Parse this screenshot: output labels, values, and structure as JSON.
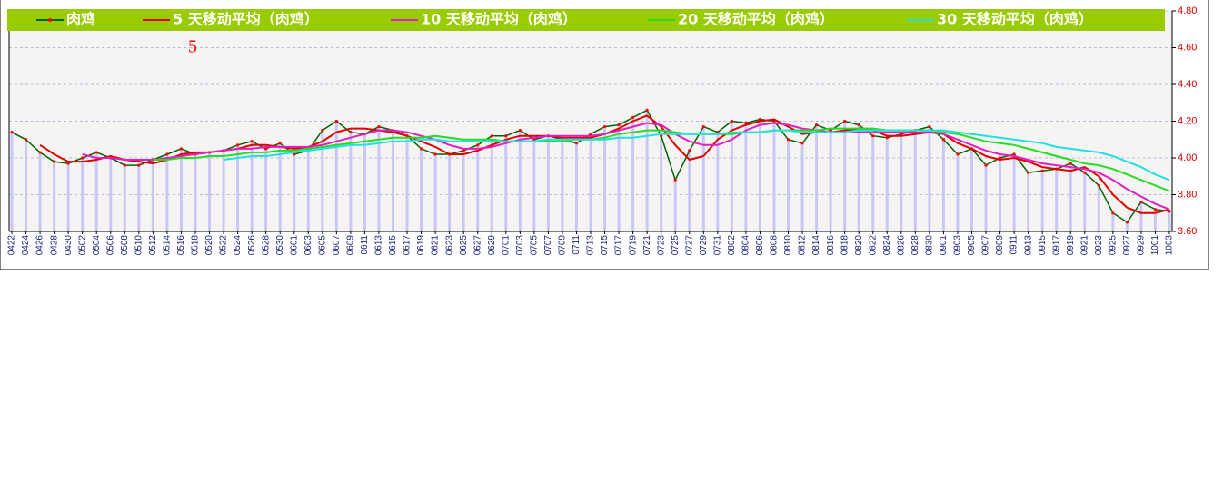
{
  "chart_data": {
    "type": "line",
    "title": "5",
    "categories": [
      "0422",
      "0424",
      "0426",
      "0428",
      "0430",
      "0502",
      "0504",
      "0506",
      "0508",
      "0510",
      "0512",
      "0514",
      "0516",
      "0518",
      "0520",
      "0522",
      "0524",
      "0526",
      "0528",
      "0530",
      "0601",
      "0603",
      "0605",
      "0607",
      "0609",
      "0611",
      "0613",
      "0615",
      "0617",
      "0619",
      "0621",
      "0623",
      "0625",
      "0627",
      "0629",
      "0701",
      "0703",
      "0705",
      "0707",
      "0709",
      "0711",
      "0713",
      "0715",
      "0717",
      "0719",
      "0721",
      "0723",
      "0725",
      "0727",
      "0729",
      "0731",
      "0802",
      "0804",
      "0806",
      "0808",
      "0810",
      "0812",
      "0814",
      "0816",
      "0818",
      "0820",
      "0822",
      "0824",
      "0826",
      "0828",
      "0830",
      "0901",
      "0903",
      "0905",
      "0907",
      "0909",
      "0911",
      "0913",
      "0915",
      "0917",
      "0919",
      "0921",
      "0923",
      "0925",
      "0927",
      "0929",
      "1001",
      "1003"
    ],
    "series": [
      {
        "name": "肉鸡",
        "color": "#006400",
        "marker_color": "#ff0000",
        "bar_color": "#c8c8f4",
        "values": [
          4.14,
          4.1,
          4.03,
          3.98,
          3.97,
          4.0,
          4.03,
          4.0,
          3.96,
          3.96,
          3.99,
          4.02,
          4.05,
          4.02,
          4.03,
          4.04,
          4.07,
          4.09,
          4.05,
          4.08,
          4.02,
          4.04,
          4.15,
          4.2,
          4.14,
          4.13,
          4.17,
          4.15,
          4.12,
          4.05,
          4.02,
          4.02,
          4.04,
          4.07,
          4.12,
          4.12,
          4.15,
          4.1,
          4.12,
          4.1,
          4.08,
          4.13,
          4.17,
          4.18,
          4.22,
          4.26,
          4.12,
          3.88,
          4.04,
          4.17,
          4.14,
          4.2,
          4.19,
          4.21,
          4.2,
          4.1,
          4.08,
          4.18,
          4.15,
          4.2,
          4.18,
          4.12,
          4.11,
          4.13,
          4.15,
          4.17,
          4.1,
          4.02,
          4.05,
          3.96,
          4.0,
          4.02,
          3.92,
          3.93,
          3.94,
          3.97,
          3.92,
          3.85,
          3.7,
          3.65,
          3.76,
          3.72,
          3.71
        ]
      },
      {
        "name": "5 天移动平均（肉鸡）",
        "color": "#e00000",
        "values": [
          null,
          null,
          4.07,
          4.02,
          3.98,
          3.98,
          3.99,
          4.01,
          3.99,
          3.98,
          3.97,
          3.99,
          4.02,
          4.03,
          4.03,
          4.04,
          4.05,
          4.07,
          4.07,
          4.06,
          4.05,
          4.06,
          4.09,
          4.14,
          4.16,
          4.16,
          4.15,
          4.14,
          4.12,
          4.09,
          4.06,
          4.02,
          4.02,
          4.04,
          4.07,
          4.1,
          4.12,
          4.12,
          4.12,
          4.11,
          4.11,
          4.11,
          4.13,
          4.16,
          4.2,
          4.23,
          4.17,
          4.07,
          3.99,
          4.01,
          4.1,
          4.15,
          4.18,
          4.2,
          4.21,
          4.17,
          4.13,
          4.14,
          4.14,
          4.15,
          4.16,
          4.15,
          4.12,
          4.12,
          4.13,
          4.14,
          4.13,
          4.08,
          4.05,
          4.01,
          3.99,
          4.0,
          3.98,
          3.95,
          3.94,
          3.93,
          3.95,
          3.9,
          3.8,
          3.73,
          3.7,
          3.7,
          3.72
        ]
      },
      {
        "name": "10 天移动平均（肉鸡）",
        "color": "#e020c0",
        "values": [
          null,
          null,
          null,
          null,
          null,
          4.02,
          4.0,
          4.0,
          3.99,
          3.99,
          3.99,
          4.0,
          4.01,
          4.02,
          4.03,
          4.04,
          4.05,
          4.05,
          4.06,
          4.06,
          4.06,
          4.06,
          4.07,
          4.09,
          4.11,
          4.13,
          4.15,
          4.15,
          4.14,
          4.12,
          4.1,
          4.07,
          4.05,
          4.05,
          4.06,
          4.08,
          4.1,
          4.11,
          4.12,
          4.12,
          4.12,
          4.12,
          4.13,
          4.15,
          4.17,
          4.19,
          4.18,
          4.13,
          4.09,
          4.07,
          4.07,
          4.1,
          4.15,
          4.18,
          4.19,
          4.18,
          4.16,
          4.15,
          4.14,
          4.14,
          4.14,
          4.14,
          4.14,
          4.14,
          4.14,
          4.14,
          4.13,
          4.1,
          4.07,
          4.04,
          4.02,
          4.01,
          3.99,
          3.97,
          3.96,
          3.95,
          3.94,
          3.92,
          3.88,
          3.83,
          3.79,
          3.75,
          3.72
        ]
      },
      {
        "name": "20 天移动平均（肉鸡）",
        "color": "#22dd22",
        "values": [
          null,
          null,
          null,
          null,
          null,
          null,
          null,
          null,
          null,
          null,
          3.99,
          3.99,
          4.0,
          4.0,
          4.01,
          4.01,
          4.02,
          4.03,
          4.03,
          4.04,
          4.04,
          4.05,
          4.06,
          4.07,
          4.08,
          4.09,
          4.1,
          4.11,
          4.11,
          4.11,
          4.12,
          4.11,
          4.1,
          4.1,
          4.1,
          4.09,
          4.09,
          4.09,
          4.09,
          4.09,
          4.1,
          4.1,
          4.11,
          4.13,
          4.14,
          4.15,
          4.15,
          4.14,
          4.13,
          4.13,
          4.13,
          4.13,
          4.14,
          4.14,
          4.15,
          4.15,
          4.15,
          4.15,
          4.16,
          4.16,
          4.16,
          4.16,
          4.15,
          4.15,
          4.15,
          4.15,
          4.14,
          4.13,
          4.11,
          4.09,
          4.08,
          4.07,
          4.05,
          4.03,
          4.01,
          3.99,
          3.97,
          3.96,
          3.94,
          3.91,
          3.88,
          3.85,
          3.82
        ]
      },
      {
        "name": "30 天移动平均（肉鸡）",
        "color": "#22e0e0",
        "values": [
          null,
          null,
          null,
          null,
          null,
          null,
          null,
          null,
          null,
          null,
          null,
          null,
          null,
          null,
          null,
          3.99,
          4.0,
          4.01,
          4.01,
          4.02,
          4.03,
          4.04,
          4.05,
          4.06,
          4.07,
          4.07,
          4.08,
          4.09,
          4.09,
          4.1,
          4.1,
          4.09,
          4.09,
          4.09,
          4.09,
          4.09,
          4.09,
          4.09,
          4.1,
          4.1,
          4.1,
          4.1,
          4.1,
          4.11,
          4.11,
          4.12,
          4.13,
          4.13,
          4.13,
          4.13,
          4.13,
          4.14,
          4.14,
          4.14,
          4.15,
          4.15,
          4.14,
          4.14,
          4.14,
          4.14,
          4.15,
          4.15,
          4.15,
          4.15,
          4.15,
          4.15,
          4.15,
          4.14,
          4.13,
          4.12,
          4.11,
          4.1,
          4.09,
          4.08,
          4.06,
          4.05,
          4.04,
          4.03,
          4.01,
          3.98,
          3.95,
          3.91,
          3.88
        ]
      }
    ],
    "ylim": [
      3.6,
      4.8
    ],
    "yticks": [
      {
        "value": 3.6,
        "label": "3.60"
      },
      {
        "value": 3.8,
        "label": "3.80"
      },
      {
        "value": 4.0,
        "label": "4.00"
      },
      {
        "value": 4.2,
        "label": "4.20"
      },
      {
        "value": 4.4,
        "label": "4.40"
      },
      {
        "value": 4.6,
        "label": "4.60"
      },
      {
        "value": 4.8,
        "label": "4.80"
      }
    ],
    "grid": true,
    "legend_position": "top"
  }
}
